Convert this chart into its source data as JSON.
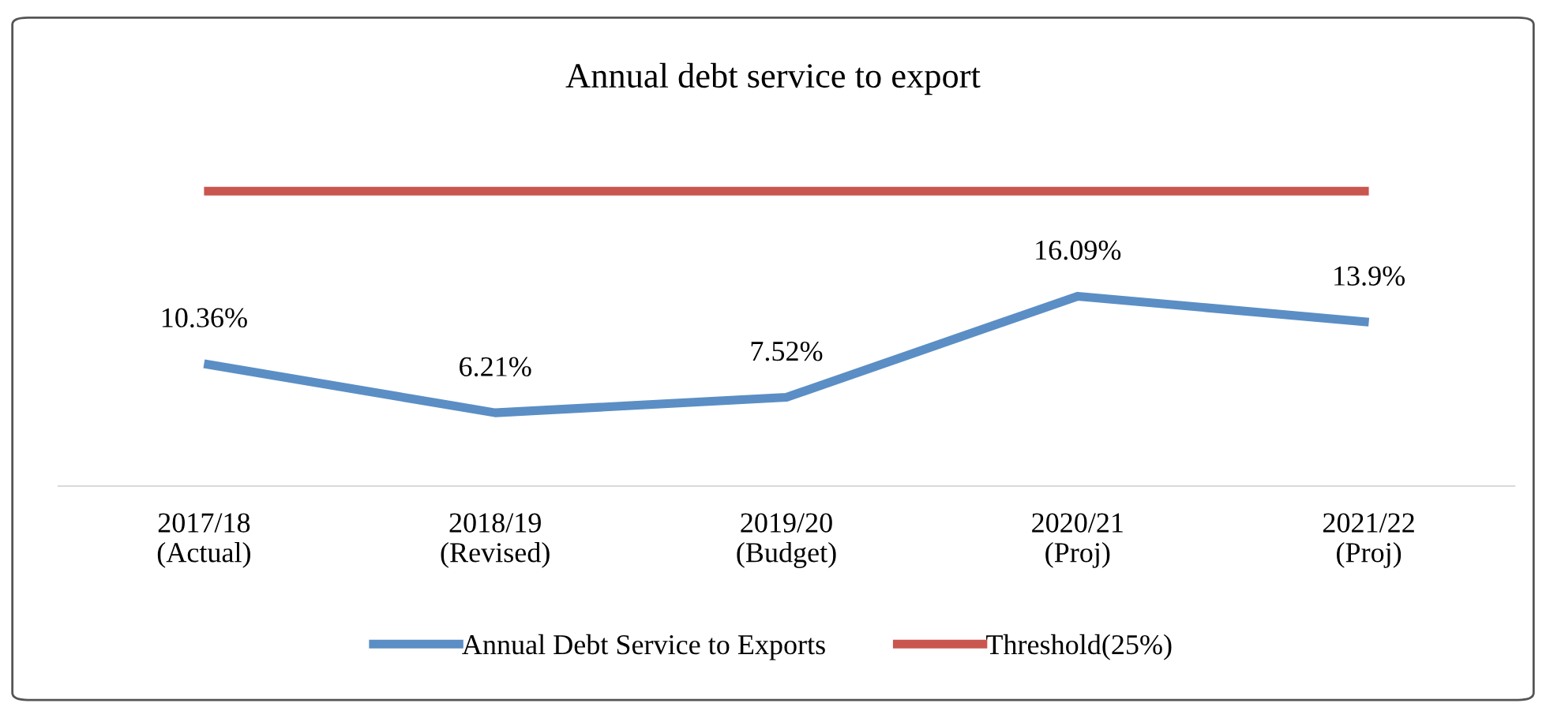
{
  "chart_data": {
    "type": "line",
    "title": "Annual debt service to export",
    "categories": [
      "2017/18\n(Actual)",
      "2018/19\n(Revised)",
      "2019/20\n(Budget)",
      "2020/21\n(Proj)",
      "2021/22\n(Proj)"
    ],
    "series": [
      {
        "name": "Annual Debt Service to Exports",
        "color": "#5b8ec4",
        "values": [
          10.36,
          6.21,
          7.52,
          16.09,
          13.9
        ],
        "value_labels": [
          "10.36%",
          "6.21%",
          "7.52%",
          "16.09%",
          "13.9%"
        ]
      },
      {
        "name": "Threshold(25%)",
        "color": "#c9574f",
        "values": [
          25,
          25,
          25,
          25,
          25
        ]
      }
    ],
    "tick_labels": "x",
    "legend": "bottom",
    "marker": "none",
    "line_style": "solid"
  }
}
